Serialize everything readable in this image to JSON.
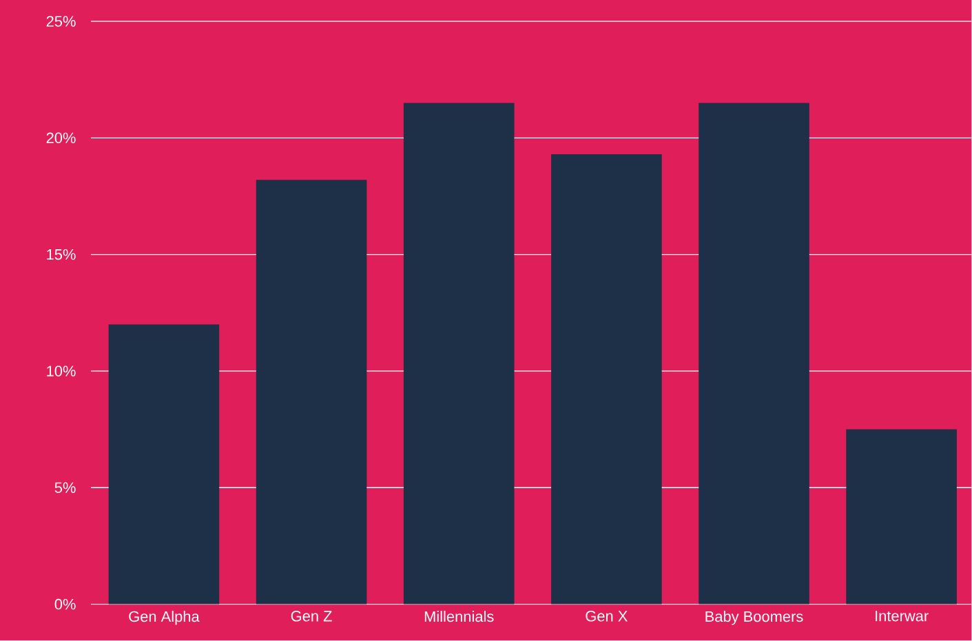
{
  "chart_data": {
    "type": "bar",
    "categories": [
      "Gen Alpha",
      "Gen Z",
      "Millennials",
      "Gen X",
      "Baby Boomers",
      "Interwar"
    ],
    "values": [
      12.0,
      18.2,
      21.5,
      19.3,
      21.5,
      7.5
    ],
    "color": "#1e2f48",
    "ylim": [
      0,
      25
    ],
    "yticks": [
      {
        "value": 0,
        "label": "0%"
      },
      {
        "value": 5,
        "label": "5%"
      },
      {
        "value": 10,
        "label": "10%"
      },
      {
        "value": 15,
        "label": "15%"
      },
      {
        "value": 20,
        "label": "20%"
      },
      {
        "value": 25,
        "label": "25%"
      }
    ],
    "grid": "y"
  }
}
